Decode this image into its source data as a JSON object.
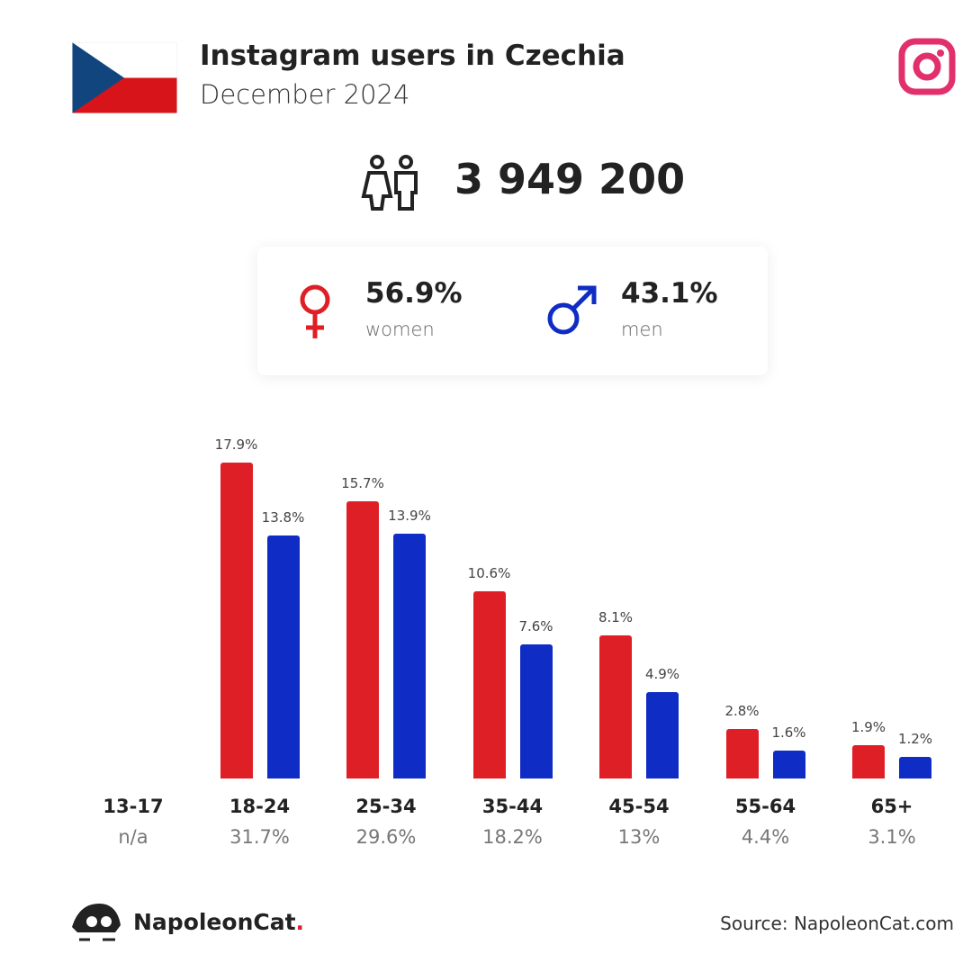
{
  "header": {
    "title": "Instagram users in Czechia",
    "subtitle": "December 2024",
    "flag_icon": "czech-flag",
    "brand_icon": "instagram-icon"
  },
  "total_users": "3 949 200",
  "gender": {
    "women": {
      "percent": "56.9%",
      "label": "women",
      "color": "#de1f26"
    },
    "men": {
      "percent": "43.1%",
      "label": "men",
      "color": "#0f2cc4"
    }
  },
  "chart_data": {
    "type": "bar",
    "categories": [
      "13-17",
      "18-24",
      "25-34",
      "35-44",
      "45-54",
      "55-64",
      "65+"
    ],
    "category_totals": [
      "n/a",
      "31.7%",
      "29.6%",
      "18.2%",
      "13%",
      "4.4%",
      "3.1%"
    ],
    "series": [
      {
        "name": "women",
        "color": "#de1f26",
        "values": [
          null,
          17.9,
          15.7,
          10.6,
          8.1,
          2.8,
          1.9
        ],
        "labels": [
          "",
          "17.9%",
          "15.7%",
          "10.6%",
          "8.1%",
          "2.8%",
          "1.9%"
        ]
      },
      {
        "name": "men",
        "color": "#0f2cc4",
        "values": [
          null,
          13.8,
          13.9,
          7.6,
          4.9,
          1.6,
          1.2
        ],
        "labels": [
          "",
          "13.8%",
          "13.9%",
          "7.6%",
          "4.9%",
          "1.6%",
          "1.2%"
        ]
      }
    ],
    "ylim": [
      0,
      18
    ]
  },
  "footer": {
    "brand": "NapoleonCat",
    "brand_dot": ".",
    "source": "Source: NapoleonCat.com"
  }
}
